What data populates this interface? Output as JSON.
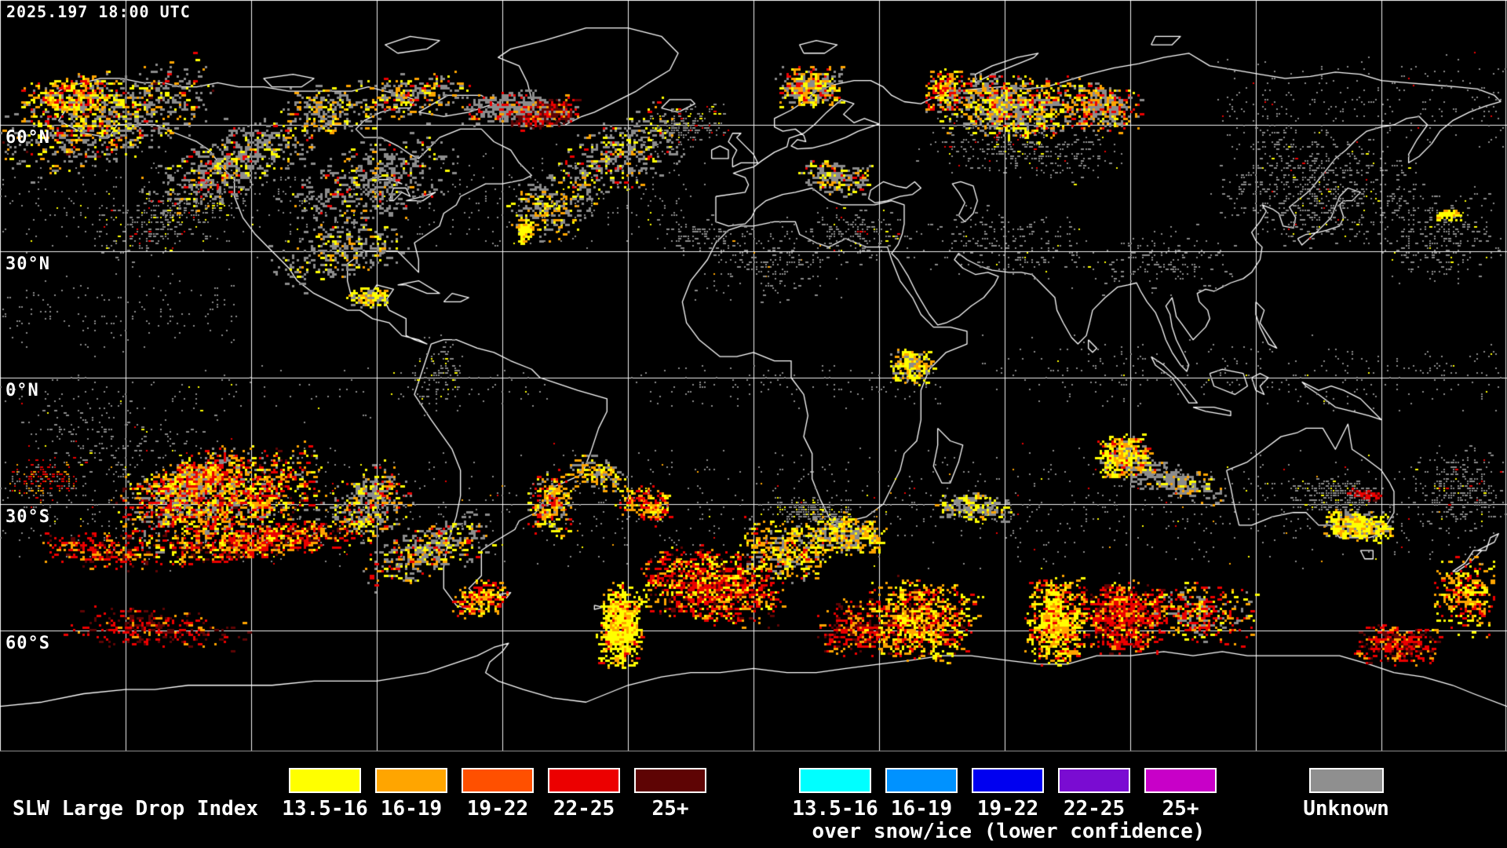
{
  "header": {
    "timestamp": "2025.197 18:00 UTC"
  },
  "map": {
    "latitude_labels": [
      {
        "label": "60°N",
        "lat": 60
      },
      {
        "label": "30°N",
        "lat": 30
      },
      {
        "label": "0°N",
        "lat": 0
      },
      {
        "label": "30°S",
        "lat": -30
      },
      {
        "label": "60°S",
        "lat": -60
      }
    ],
    "background": "#000000",
    "gridline_color": "#ffffff",
    "coastline_color": "#ffffff"
  },
  "legend": {
    "title": "SLW Large Drop Index",
    "primary": [
      {
        "label": "13.5-16",
        "color": "#ffff00"
      },
      {
        "label": "16-19",
        "color": "#ffa500"
      },
      {
        "label": "19-22",
        "color": "#ff5000"
      },
      {
        "label": "22-25",
        "color": "#ec0000"
      },
      {
        "label": "25+",
        "color": "#5e0404"
      }
    ],
    "snow_ice": {
      "items": [
        {
          "label": "13.5-16",
          "color": "#00ffff"
        },
        {
          "label": "16-19",
          "color": "#0092ff"
        },
        {
          "label": "19-22",
          "color": "#0000f0"
        },
        {
          "label": "22-25",
          "color": "#7a0cd2"
        },
        {
          "label": "25+",
          "color": "#c800c8"
        }
      ],
      "caption": "over snow/ice (lower confidence)"
    },
    "unknown": {
      "label": "Unknown",
      "color": "#8f8f8f"
    }
  }
}
